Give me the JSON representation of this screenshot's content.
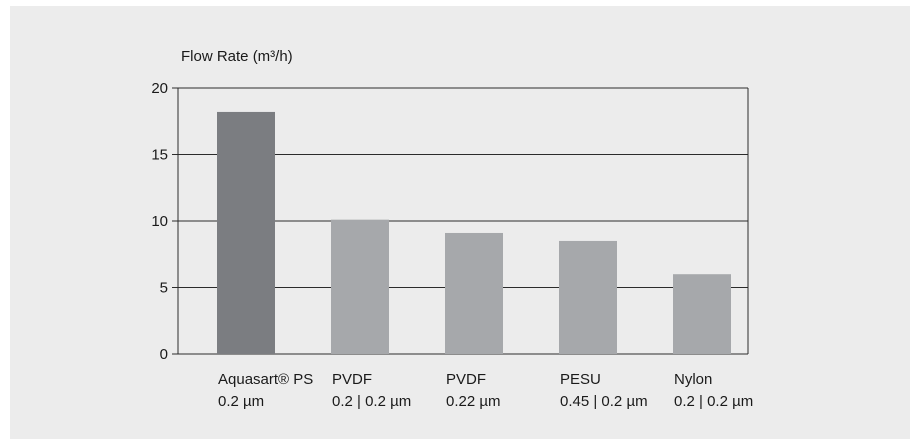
{
  "chart_data": {
    "type": "bar",
    "title": "",
    "ylabel": "Flow Rate (m³/h)",
    "xlabel": "",
    "ylim": [
      0,
      20
    ],
    "yticks": [
      0,
      5,
      10,
      15,
      20
    ],
    "grid": true,
    "categories": [
      {
        "line1": "Aquasart® PS",
        "line2": "0.2 µm",
        "color": "#7b7d81"
      },
      {
        "line1": "PVDF",
        "line2": "0.2 | 0.2 µm",
        "color": "#a6a8ab"
      },
      {
        "line1": "PVDF",
        "line2": "0.22 µm",
        "color": "#a6a8ab"
      },
      {
        "line1": "PESU",
        "line2": "0.45 | 0.2 µm",
        "color": "#a6a8ab"
      },
      {
        "line1": "Nylon",
        "line2": "0.2 | 0.2 µm",
        "color": "#a6a8ab"
      }
    ],
    "values": [
      18.2,
      10.1,
      9.1,
      8.5,
      6.0
    ]
  }
}
